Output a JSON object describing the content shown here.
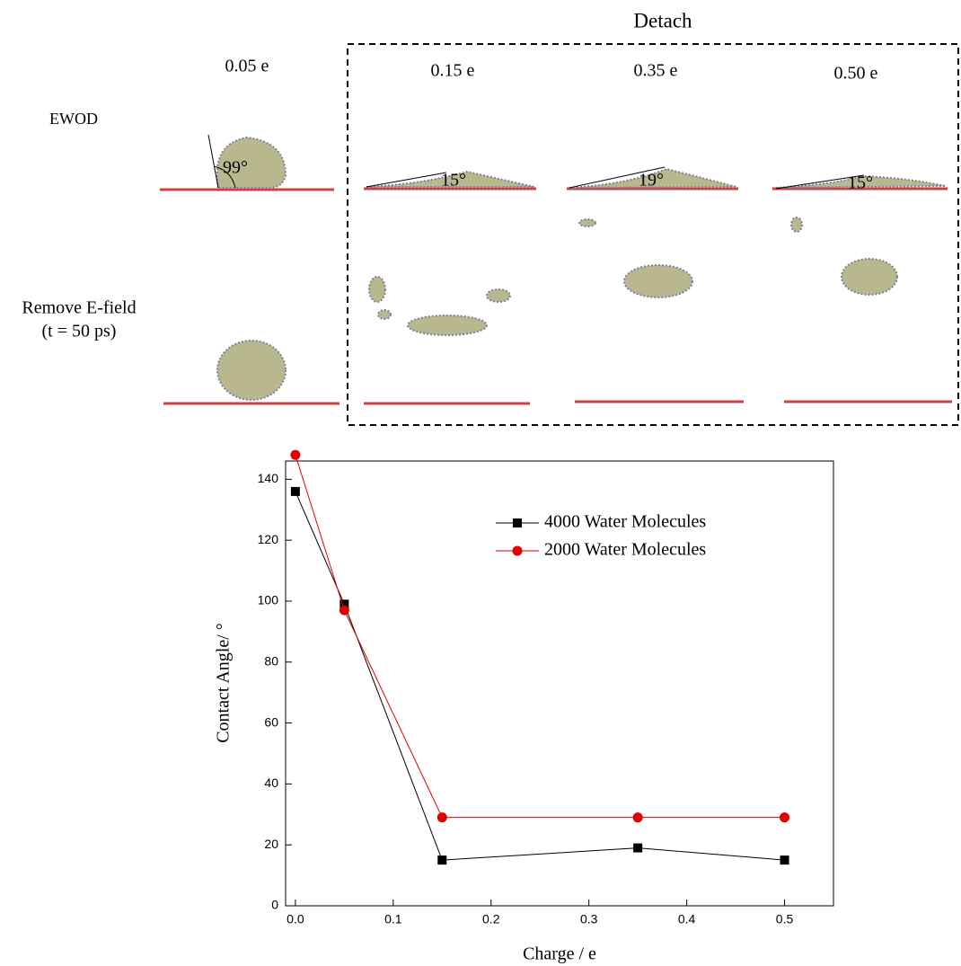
{
  "snapshots": {
    "group_label": "Detach",
    "columns": [
      "0.05 e",
      "0.15 e",
      "0.35 e",
      "0.50 e"
    ],
    "rows": [
      "EWOD",
      "Remove E-field",
      "(t = 50 ps)"
    ],
    "angles": [
      "99°",
      "15°",
      "19°",
      "15°"
    ]
  },
  "chart_data": {
    "type": "line",
    "x_label": "Charge / e",
    "y_label": "Contact Angle/ °",
    "x": [
      0,
      0.05,
      0.15,
      0.35,
      0.5
    ],
    "series": [
      {
        "name": "4000 Water Molecules",
        "color": "#000000",
        "marker": "square",
        "values": [
          136,
          99,
          15,
          19,
          15
        ]
      },
      {
        "name": "2000 Water Molecules",
        "color": "#e00000",
        "marker": "circle",
        "values": [
          148,
          97,
          29,
          29,
          29
        ]
      }
    ],
    "xlim": [
      -0.01,
      0.55
    ],
    "xticks": [
      {
        "value": 0,
        "label": "0.0"
      },
      0.1,
      0.2,
      0.3,
      0.4,
      0.5
    ],
    "ylim": [
      0,
      146
    ],
    "yticks": [
      0,
      20,
      40,
      60,
      80,
      100,
      120,
      140
    ]
  }
}
